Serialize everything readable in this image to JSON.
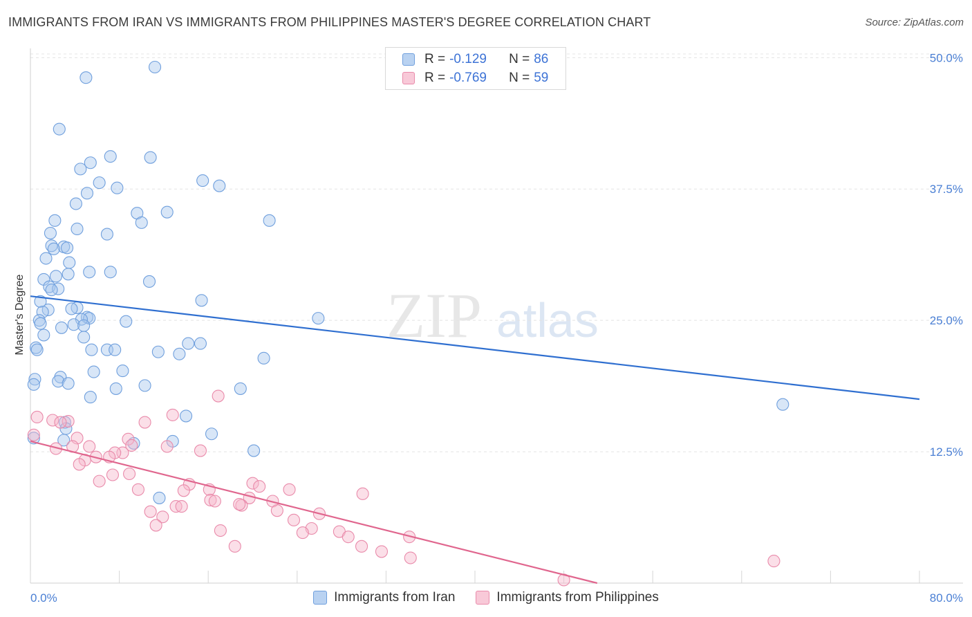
{
  "header": {
    "title": "IMMIGRANTS FROM IRAN VS IMMIGRANTS FROM PHILIPPINES MASTER'S DEGREE CORRELATION CHART",
    "source": "Source: ZipAtlas.com"
  },
  "watermark": {
    "zip": "ZIP",
    "atlas": "atlas"
  },
  "legend": {
    "rows": [
      {
        "r_label": "R =",
        "r_value": "-0.129",
        "n_label": "N =",
        "n_value": "86"
      },
      {
        "r_label": "R =",
        "r_value": "-0.769",
        "n_label": "N =",
        "n_value": "59"
      }
    ]
  },
  "chart_data": {
    "type": "scatter",
    "title": "IMMIGRANTS FROM IRAN VS IMMIGRANTS FROM PHILIPPINES MASTER'S DEGREE CORRELATION CHART",
    "xlabel": "",
    "ylabel": "Master's Degree",
    "xlim": [
      0,
      80
    ],
    "ylim": [
      0,
      52
    ],
    "x_ticks_labels": [
      "0.0%",
      "80.0%"
    ],
    "y_ticks": [
      12.5,
      25.0,
      37.5,
      50.0
    ],
    "y_ticks_labels": [
      "12.5%",
      "25.0%",
      "37.5%",
      "50.0%"
    ],
    "grid": "horizontal dashed",
    "legend_placement": "top-center",
    "colors": {
      "iran_fill": "#a9c8ee",
      "iran_stroke": "#6f9fdd",
      "iran_line": "#2f6fd0",
      "phil_fill": "#f6b9cd",
      "phil_stroke": "#e98aaa",
      "phil_line": "#e0668e"
    },
    "series": [
      {
        "name": "Immigrants from Iran",
        "r": -0.129,
        "n": 86,
        "trend": {
          "x": [
            0,
            80
          ],
          "y": [
            27.3,
            17.5
          ]
        },
        "points": [
          [
            11.2,
            49.1
          ],
          [
            5.0,
            48.1
          ],
          [
            2.6,
            43.2
          ],
          [
            7.2,
            40.6
          ],
          [
            10.8,
            40.5
          ],
          [
            5.4,
            40.0
          ],
          [
            4.5,
            39.4
          ],
          [
            15.5,
            38.3
          ],
          [
            6.2,
            38.1
          ],
          [
            7.8,
            37.6
          ],
          [
            17.0,
            37.8
          ],
          [
            5.1,
            37.1
          ],
          [
            4.1,
            36.1
          ],
          [
            9.6,
            35.2
          ],
          [
            12.3,
            35.3
          ],
          [
            10.0,
            34.3
          ],
          [
            21.5,
            34.5
          ],
          [
            2.2,
            34.5
          ],
          [
            4.2,
            33.7
          ],
          [
            6.9,
            33.2
          ],
          [
            1.8,
            33.3
          ],
          [
            1.9,
            32.1
          ],
          [
            3.0,
            32.0
          ],
          [
            3.3,
            31.9
          ],
          [
            2.1,
            31.8
          ],
          [
            1.4,
            30.9
          ],
          [
            3.5,
            30.5
          ],
          [
            5.3,
            29.6
          ],
          [
            7.2,
            29.6
          ],
          [
            3.4,
            29.4
          ],
          [
            2.3,
            29.2
          ],
          [
            1.2,
            28.9
          ],
          [
            10.7,
            28.7
          ],
          [
            1.7,
            28.2
          ],
          [
            2.5,
            28.0
          ],
          [
            1.9,
            27.9
          ],
          [
            15.4,
            26.9
          ],
          [
            0.9,
            26.8
          ],
          [
            4.2,
            26.2
          ],
          [
            3.7,
            26.1
          ],
          [
            1.6,
            26.0
          ],
          [
            1.1,
            25.8
          ],
          [
            25.9,
            25.2
          ],
          [
            5.1,
            25.3
          ],
          [
            5.3,
            25.2
          ],
          [
            4.6,
            25.1
          ],
          [
            0.8,
            25.0
          ],
          [
            8.6,
            24.9
          ],
          [
            0.9,
            24.7
          ],
          [
            3.9,
            24.6
          ],
          [
            4.8,
            24.5
          ],
          [
            2.8,
            24.3
          ],
          [
            1.2,
            23.6
          ],
          [
            4.8,
            23.4
          ],
          [
            15.3,
            22.8
          ],
          [
            14.2,
            22.8
          ],
          [
            0.5,
            22.4
          ],
          [
            0.6,
            22.2
          ],
          [
            5.5,
            22.2
          ],
          [
            6.9,
            22.2
          ],
          [
            7.6,
            22.2
          ],
          [
            11.5,
            22.0
          ],
          [
            13.4,
            21.8
          ],
          [
            21.0,
            21.4
          ],
          [
            8.3,
            20.2
          ],
          [
            5.7,
            20.1
          ],
          [
            2.7,
            19.6
          ],
          [
            0.4,
            19.4
          ],
          [
            2.5,
            19.2
          ],
          [
            3.4,
            19.0
          ],
          [
            0.3,
            18.9
          ],
          [
            10.3,
            18.8
          ],
          [
            7.7,
            18.5
          ],
          [
            18.9,
            18.5
          ],
          [
            5.4,
            17.7
          ],
          [
            67.7,
            17.0
          ],
          [
            14.0,
            15.9
          ],
          [
            3.1,
            15.3
          ],
          [
            3.2,
            14.7
          ],
          [
            16.3,
            14.2
          ],
          [
            12.8,
            13.5
          ],
          [
            9.3,
            13.3
          ],
          [
            3.0,
            13.6
          ],
          [
            20.1,
            12.6
          ],
          [
            11.6,
            8.1
          ],
          [
            0.3,
            13.8
          ]
        ]
      },
      {
        "name": "Immigrants from Philippines",
        "r": -0.769,
        "n": 59,
        "trend": {
          "x": [
            0,
            51.0
          ],
          "y": [
            13.5,
            0
          ]
        },
        "points": [
          [
            0.6,
            15.8
          ],
          [
            2.0,
            15.5
          ],
          [
            0.3,
            14.1
          ],
          [
            3.4,
            15.4
          ],
          [
            2.7,
            15.3
          ],
          [
            10.3,
            15.3
          ],
          [
            16.9,
            17.8
          ],
          [
            12.8,
            16.0
          ],
          [
            4.2,
            13.8
          ],
          [
            8.8,
            13.7
          ],
          [
            9.1,
            13.1
          ],
          [
            12.3,
            13.0
          ],
          [
            3.8,
            13.0
          ],
          [
            5.3,
            13.0
          ],
          [
            2.3,
            12.8
          ],
          [
            15.3,
            12.6
          ],
          [
            8.3,
            12.4
          ],
          [
            7.6,
            12.4
          ],
          [
            7.1,
            12.0
          ],
          [
            5.9,
            12.0
          ],
          [
            4.9,
            11.7
          ],
          [
            4.4,
            11.3
          ],
          [
            8.9,
            10.4
          ],
          [
            7.4,
            10.3
          ],
          [
            6.2,
            9.7
          ],
          [
            14.3,
            9.4
          ],
          [
            20.0,
            9.5
          ],
          [
            20.6,
            9.2
          ],
          [
            23.3,
            8.9
          ],
          [
            16.1,
            8.9
          ],
          [
            9.7,
            8.9
          ],
          [
            29.9,
            8.5
          ],
          [
            13.8,
            8.8
          ],
          [
            19.7,
            8.1
          ],
          [
            16.2,
            7.9
          ],
          [
            21.8,
            7.8
          ],
          [
            16.6,
            7.8
          ],
          [
            19.0,
            7.4
          ],
          [
            18.8,
            7.5
          ],
          [
            13.1,
            7.3
          ],
          [
            13.6,
            7.3
          ],
          [
            10.8,
            6.8
          ],
          [
            22.2,
            6.9
          ],
          [
            26.0,
            6.6
          ],
          [
            11.9,
            6.3
          ],
          [
            23.7,
            6.0
          ],
          [
            11.3,
            5.5
          ],
          [
            25.3,
            5.2
          ],
          [
            24.5,
            4.8
          ],
          [
            17.1,
            5.0
          ],
          [
            27.8,
            4.9
          ],
          [
            28.6,
            4.4
          ],
          [
            34.1,
            4.4
          ],
          [
            29.8,
            3.5
          ],
          [
            18.4,
            3.5
          ],
          [
            31.6,
            3.0
          ],
          [
            34.2,
            2.4
          ],
          [
            48.0,
            0.3
          ],
          [
            66.9,
            2.1
          ]
        ]
      }
    ]
  },
  "bottom_legend": {
    "iran": "Immigrants from Iran",
    "phil": "Immigrants from Philippines"
  }
}
